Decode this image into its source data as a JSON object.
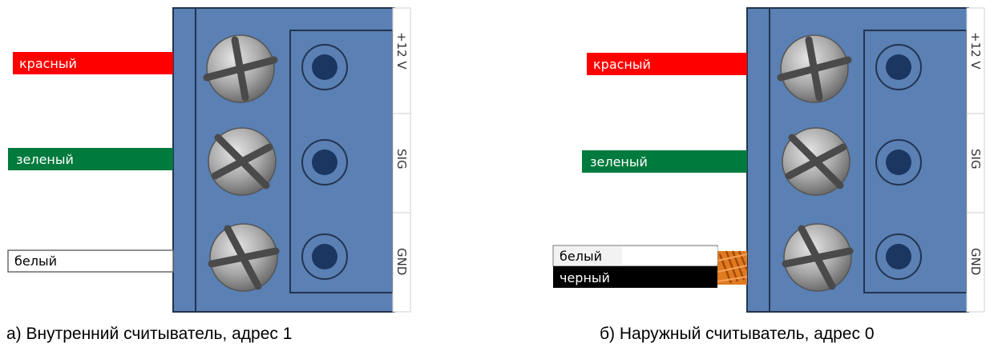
{
  "panels": [
    {
      "caption": "а) Внутренний считыватель, адрес 1",
      "wires": [
        {
          "label": "красный",
          "color": "#ff0000",
          "text_color": "#ffffff"
        },
        {
          "label": "зеленый",
          "color": "#007a3d",
          "text_color": "#ffffff"
        },
        {
          "label": "белый",
          "color": "#ffffff",
          "text_color": "#000000"
        }
      ]
    },
    {
      "caption": "б) Наружный считыватель, адрес 0",
      "wires": [
        {
          "label": "красный",
          "color": "#ff0000",
          "text_color": "#ffffff"
        },
        {
          "label": "зеленый",
          "color": "#007a3d",
          "text_color": "#ffffff"
        },
        {
          "label": "белый",
          "color": "#f2f2f2",
          "text_color": "#000000"
        },
        {
          "label": "черный",
          "color": "#000000",
          "text_color": "#ffffff"
        }
      ]
    }
  ],
  "terminals": [
    "+12 V",
    "SIG",
    "GND"
  ],
  "colors": {
    "block": "#5a80b4",
    "block_border": "#22344f",
    "screw": "#9a9a9a",
    "screw_slot": "#4a4a4a",
    "socket": "#1b3660",
    "twist": "#e07a1f"
  }
}
